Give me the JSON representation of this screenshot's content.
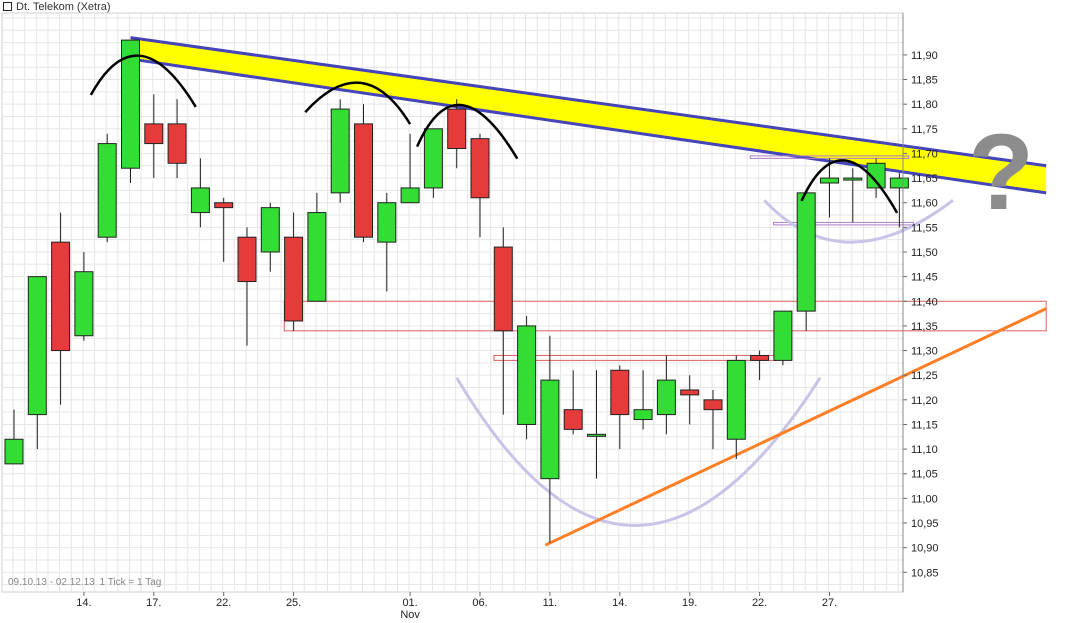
{
  "chart_title": "Dt. Telekom (Xetra)",
  "range_note": {
    "dates": "09.10.13 - 02.12.13",
    "tick": "1 Tick = 1 Tag"
  },
  "annotation_text": "?",
  "colors": {
    "up": "#33dd33",
    "down": "#e63b3b",
    "grid": "#e6e6e6",
    "resistance_band": "#ffff00",
    "trendline_blue": "#4444bb",
    "support_line": "#ff7f27",
    "arc": "#000000",
    "bowl": "#c8c4e8",
    "box": "#e06060"
  },
  "chart_data": {
    "type": "candlestick",
    "title": "Dt. Telekom (Xetra)",
    "ylim": [
      10.81,
      11.985
    ],
    "y_ticks": [
      "11,90",
      "11,85",
      "11,80",
      "11,75",
      "11,70",
      "11,65",
      "11,60",
      "11,55",
      "11,50",
      "11,45",
      "11,40",
      "11,35",
      "11,30",
      "11,25",
      "11,20",
      "11,15",
      "11,10",
      "11,05",
      "11,00",
      "10,95",
      "10,90",
      "10,85"
    ],
    "x_ticks": [
      {
        "label": "14.",
        "index": 3
      },
      {
        "label": "17.",
        "index": 6
      },
      {
        "label": "22.",
        "index": 9
      },
      {
        "label": "25.",
        "index": 12
      },
      {
        "label": "01.",
        "index": 17
      },
      {
        "label": "06.",
        "index": 20
      },
      {
        "label": "11.",
        "index": 23
      },
      {
        "label": "14.",
        "index": 26
      },
      {
        "label": "19.",
        "index": 29
      },
      {
        "label": "22.",
        "index": 32
      },
      {
        "label": "27.",
        "index": 35
      }
    ],
    "month_label": {
      "label": "Nov",
      "index": 17
    },
    "candles": [
      {
        "o": 11.07,
        "h": 11.18,
        "l": 11.07,
        "c": 11.12
      },
      {
        "o": 11.17,
        "h": 11.45,
        "l": 11.1,
        "c": 11.45
      },
      {
        "o": 11.52,
        "h": 11.58,
        "l": 11.19,
        "c": 11.3
      },
      {
        "o": 11.33,
        "h": 11.5,
        "l": 11.32,
        "c": 11.46
      },
      {
        "o": 11.53,
        "h": 11.74,
        "l": 11.52,
        "c": 11.72
      },
      {
        "o": 11.67,
        "h": 11.93,
        "l": 11.64,
        "c": 11.93
      },
      {
        "o": 11.76,
        "h": 11.82,
        "l": 11.65,
        "c": 11.72
      },
      {
        "o": 11.76,
        "h": 11.81,
        "l": 11.65,
        "c": 11.68
      },
      {
        "o": 11.58,
        "h": 11.69,
        "l": 11.55,
        "c": 11.63
      },
      {
        "o": 11.6,
        "h": 11.61,
        "l": 11.48,
        "c": 11.59
      },
      {
        "o": 11.53,
        "h": 11.55,
        "l": 11.31,
        "c": 11.44
      },
      {
        "o": 11.5,
        "h": 11.6,
        "l": 11.46,
        "c": 11.59
      },
      {
        "o": 11.53,
        "h": 11.58,
        "l": 11.34,
        "c": 11.36
      },
      {
        "o": 11.4,
        "h": 11.62,
        "l": 11.4,
        "c": 11.58
      },
      {
        "o": 11.62,
        "h": 11.81,
        "l": 11.6,
        "c": 11.79
      },
      {
        "o": 11.76,
        "h": 11.8,
        "l": 11.52,
        "c": 11.53
      },
      {
        "o": 11.52,
        "h": 11.62,
        "l": 11.42,
        "c": 11.6
      },
      {
        "o": 11.6,
        "h": 11.74,
        "l": 11.6,
        "c": 11.63
      },
      {
        "o": 11.63,
        "h": 11.75,
        "l": 11.61,
        "c": 11.75
      },
      {
        "o": 11.79,
        "h": 11.81,
        "l": 11.67,
        "c": 11.71
      },
      {
        "o": 11.73,
        "h": 11.74,
        "l": 11.53,
        "c": 11.61
      },
      {
        "o": 11.51,
        "h": 11.55,
        "l": 11.17,
        "c": 11.34
      },
      {
        "o": 11.15,
        "h": 11.37,
        "l": 11.12,
        "c": 11.35
      },
      {
        "o": 11.04,
        "h": 11.33,
        "l": 10.91,
        "c": 11.24
      },
      {
        "o": 11.18,
        "h": 11.26,
        "l": 11.13,
        "c": 11.14
      },
      {
        "o": 11.13,
        "h": 11.26,
        "l": 11.04,
        "c": 11.13
      },
      {
        "o": 11.26,
        "h": 11.27,
        "l": 11.1,
        "c": 11.17
      },
      {
        "o": 11.16,
        "h": 11.26,
        "l": 11.14,
        "c": 11.18
      },
      {
        "o": 11.17,
        "h": 11.29,
        "l": 11.13,
        "c": 11.24
      },
      {
        "o": 11.22,
        "h": 11.25,
        "l": 11.15,
        "c": 11.21
      },
      {
        "o": 11.2,
        "h": 11.22,
        "l": 11.1,
        "c": 11.18
      },
      {
        "o": 11.12,
        "h": 11.29,
        "l": 11.08,
        "c": 11.28
      },
      {
        "o": 11.29,
        "h": 11.3,
        "l": 11.24,
        "c": 11.28
      },
      {
        "o": 11.28,
        "h": 11.37,
        "l": 11.27,
        "c": 11.38
      },
      {
        "o": 11.38,
        "h": 11.62,
        "l": 11.34,
        "c": 11.62
      },
      {
        "o": 11.64,
        "h": 11.69,
        "l": 11.57,
        "c": 11.65
      },
      {
        "o": 11.65,
        "h": 11.67,
        "l": 11.56,
        "c": 11.65
      },
      {
        "o": 11.63,
        "h": 11.69,
        "l": 11.61,
        "c": 11.68
      },
      {
        "o": 11.63,
        "h": 11.66,
        "l": 11.55,
        "c": 11.65
      }
    ],
    "annotations": {
      "resistance_band": {
        "from": {
          "index": 5,
          "upper": 11.935,
          "lower": 11.892
        },
        "to": {
          "index": 44.3,
          "upper": 11.675,
          "lower": 11.62
        }
      },
      "support_line": {
        "from": {
          "index": 22.8,
          "value": 10.905
        },
        "to": {
          "index": 44.3,
          "value": 11.385
        }
      },
      "zone_boxes": [
        {
          "from_index": 11.6,
          "to_index": 44.3,
          "top": 11.4,
          "bottom": 11.34
        },
        {
          "from_index": 20.6,
          "to_index": 32.7,
          "top": 11.29,
          "bottom": 11.28
        },
        {
          "from_index": 31.6,
          "to_index": 38.4,
          "top": 11.695,
          "bottom": 11.69
        },
        {
          "from_index": 32.6,
          "to_index": 38.6,
          "top": 11.56,
          "bottom": 11.555
        }
      ],
      "arcs": [
        {
          "from_index": 3.3,
          "peak_index": 5.3,
          "to_index": 7.8,
          "peak": 11.945,
          "end": 11.835
        },
        {
          "from_index": 12.5,
          "peak_index": 15.0,
          "to_index": 17.0,
          "peak": 11.87,
          "end": 11.8
        },
        {
          "from_index": 17.3,
          "peak_index": 19.0,
          "to_index": 21.6,
          "peak": 11.85,
          "end": 11.73
        },
        {
          "from_index": 33.8,
          "peak_index": 35.5,
          "to_index": 37.9,
          "peak": 11.735,
          "end": 11.62
        }
      ],
      "bowls": [
        {
          "from_index": 19.0,
          "from_value": 11.245,
          "to_index": 34.6,
          "to_value": 11.245,
          "bottom_index": 26.5,
          "bottom": 10.945
        },
        {
          "from_index": 32.2,
          "from_value": 11.605,
          "to_index": 40.3,
          "to_value": 11.605,
          "bottom_index": 35.6,
          "bottom": 11.52
        }
      ]
    }
  }
}
